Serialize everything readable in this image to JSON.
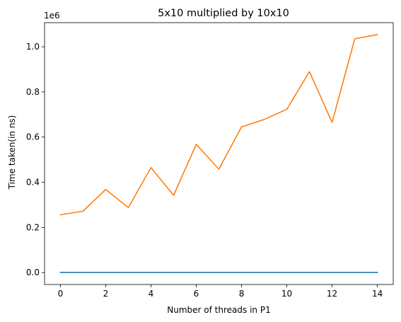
{
  "chart_data": {
    "type": "line",
    "title": "5x10 multiplied by 10x10",
    "xlabel": "Number of threads in P1",
    "ylabel": "Time taken(in ns)",
    "y_multiplier_label": "1e6",
    "xlim": [
      -0.7,
      14.7
    ],
    "ylim": [
      -0.0527,
      1.1067
    ],
    "x_ticks": [
      0,
      2,
      4,
      6,
      8,
      10,
      12,
      14
    ],
    "x_tick_labels": [
      "0",
      "2",
      "4",
      "6",
      "8",
      "10",
      "12",
      "14"
    ],
    "y_ticks": [
      0.0,
      0.2,
      0.4,
      0.6,
      0.8,
      1.0
    ],
    "y_tick_labels": [
      "0.0",
      "0.2",
      "0.4",
      "0.6",
      "0.8",
      "1.0"
    ],
    "grid": false,
    "x": [
      0,
      1,
      2,
      3,
      4,
      5,
      6,
      7,
      8,
      9,
      10,
      11,
      12,
      13,
      14
    ],
    "series": [
      {
        "color": "#1f77b4",
        "values": [
          0.0008,
          0.0008,
          0.0008,
          0.0008,
          0.0008,
          0.0008,
          0.0008,
          0.0008,
          0.0008,
          0.0008,
          0.0008,
          0.0008,
          0.0008,
          0.0008,
          0.0008
        ]
      },
      {
        "color": "#ff7f0e",
        "values": [
          0.256,
          0.272,
          0.368,
          0.288,
          0.465,
          0.342,
          0.568,
          0.458,
          0.645,
          0.678,
          0.723,
          0.89,
          0.665,
          1.035,
          1.054
        ]
      }
    ]
  }
}
